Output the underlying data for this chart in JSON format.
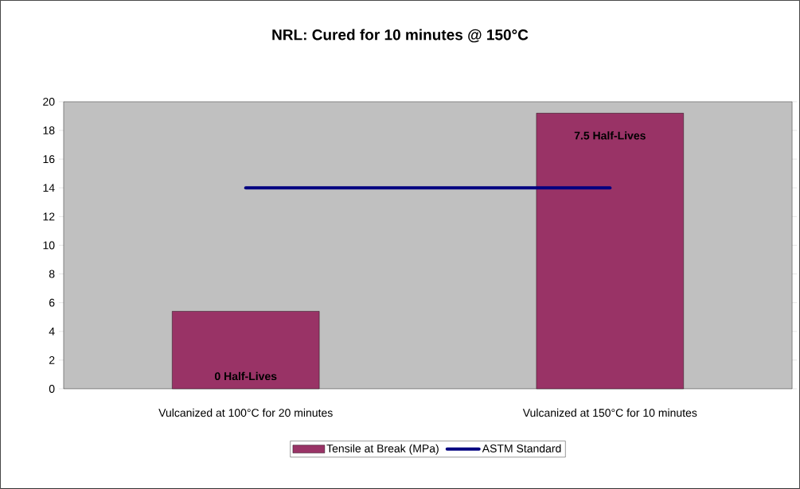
{
  "chart_data": {
    "type": "bar",
    "title": "NRL: Cured for 10 minutes @ 150°C",
    "categories": [
      "Vulcanized at 100°C for 20 minutes",
      "Vulcanized at 150°C for 10 minutes"
    ],
    "series": [
      {
        "name": "Tensile at Break (MPa)",
        "color": "#993366",
        "values": [
          5.4,
          19.2
        ]
      },
      {
        "name": "ASTM Standard",
        "type": "line",
        "color": "#000080",
        "values": [
          14,
          14
        ]
      }
    ],
    "annotations": [
      "0 Half-Lives",
      "7.5 Half-Lives"
    ],
    "ylim": [
      0,
      20
    ],
    "yticks": [
      0,
      2,
      4,
      6,
      8,
      10,
      12,
      14,
      16,
      18,
      20
    ],
    "grid": false,
    "legend": "bottom"
  }
}
